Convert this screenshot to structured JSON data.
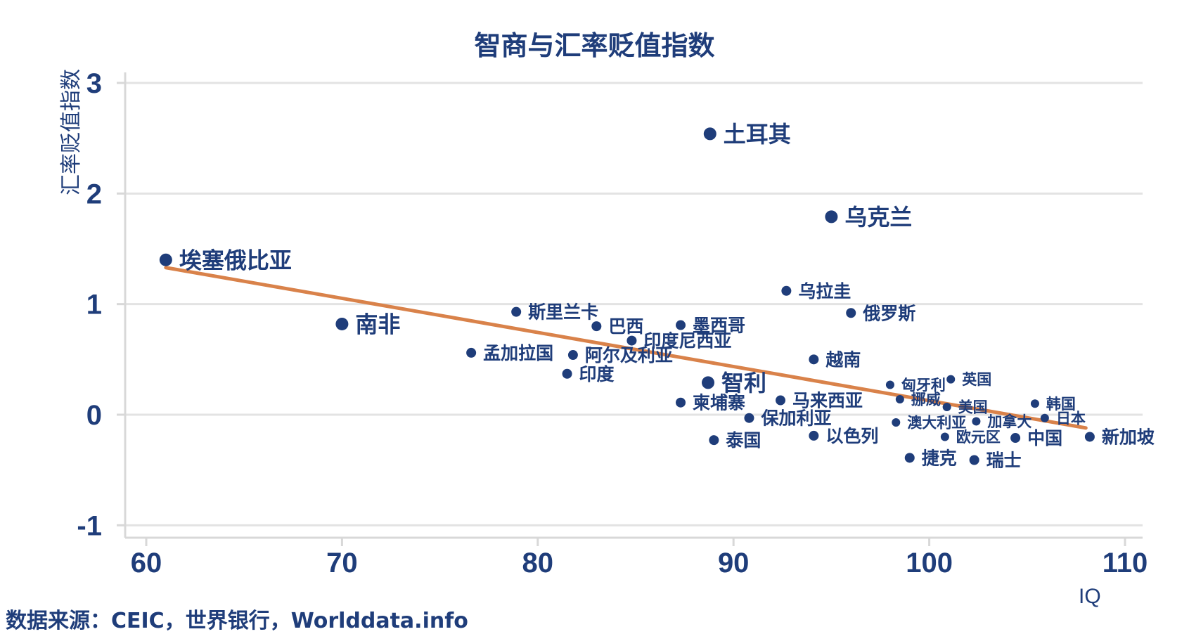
{
  "chart_data": {
    "type": "scatter",
    "title": "智商与汇率贬值指数",
    "xlabel": "IQ",
    "ylabel": "汇率贬值指数",
    "xlim": [
      59,
      111
    ],
    "ylim": [
      -1.1,
      3.05
    ],
    "xticks": [
      60,
      70,
      80,
      90,
      100,
      110
    ],
    "yticks": [
      -1,
      0,
      1,
      2,
      3
    ],
    "grid": "horizontal",
    "colors": {
      "point": "#1f3d7a",
      "trend": "#d9824a",
      "text": "#1f3d7a",
      "grid": "#e3e3e3",
      "axis": "#d8d8d8"
    },
    "points": [
      {
        "label": "埃塞俄比亚",
        "x": 61.0,
        "y": 1.4,
        "size": "large"
      },
      {
        "label": "南非",
        "x": 70.0,
        "y": 0.82,
        "size": "large"
      },
      {
        "label": "斯里兰卡",
        "x": 78.9,
        "y": 0.93,
        "size": "small"
      },
      {
        "label": "巴西",
        "x": 83.0,
        "y": 0.8,
        "size": "small"
      },
      {
        "label": "墨西哥",
        "x": 87.3,
        "y": 0.81,
        "size": "small"
      },
      {
        "label": "印度尼西亚",
        "x": 84.8,
        "y": 0.67,
        "size": "small"
      },
      {
        "label": "孟加拉国",
        "x": 76.6,
        "y": 0.56,
        "size": "small"
      },
      {
        "label": "阿尔及利亚",
        "x": 81.8,
        "y": 0.54,
        "size": "small"
      },
      {
        "label": "印度",
        "x": 81.5,
        "y": 0.37,
        "size": "small"
      },
      {
        "label": "土耳其",
        "x": 88.8,
        "y": 2.54,
        "size": "large"
      },
      {
        "label": "乌克兰",
        "x": 95.0,
        "y": 1.79,
        "size": "large"
      },
      {
        "label": "乌拉圭",
        "x": 92.7,
        "y": 1.12,
        "size": "small"
      },
      {
        "label": "俄罗斯",
        "x": 96.0,
        "y": 0.92,
        "size": "small"
      },
      {
        "label": "越南",
        "x": 94.1,
        "y": 0.5,
        "size": "small"
      },
      {
        "label": "智利",
        "x": 88.7,
        "y": 0.29,
        "size": "large"
      },
      {
        "label": "柬埔寨",
        "x": 87.3,
        "y": 0.11,
        "size": "small"
      },
      {
        "label": "马来西亚",
        "x": 92.4,
        "y": 0.13,
        "size": "small"
      },
      {
        "label": "保加利亚",
        "x": 90.8,
        "y": -0.03,
        "size": "small"
      },
      {
        "label": "泰国",
        "x": 89.0,
        "y": -0.23,
        "size": "small"
      },
      {
        "label": "以色列",
        "x": 94.1,
        "y": -0.19,
        "size": "small"
      },
      {
        "label": "匈牙利",
        "x": 98.0,
        "y": 0.27,
        "size": "tiny"
      },
      {
        "label": "英国",
        "x": 101.1,
        "y": 0.32,
        "size": "tiny"
      },
      {
        "label": "挪威",
        "x": 98.5,
        "y": 0.14,
        "size": "tiny"
      },
      {
        "label": "美国",
        "x": 100.9,
        "y": 0.07,
        "size": "tiny"
      },
      {
        "label": "澳大利亚",
        "x": 98.3,
        "y": -0.07,
        "size": "tiny"
      },
      {
        "label": "加拿大",
        "x": 102.4,
        "y": -0.06,
        "size": "tiny"
      },
      {
        "label": "欧元区",
        "x": 100.8,
        "y": -0.2,
        "size": "tiny"
      },
      {
        "label": "中国",
        "x": 104.4,
        "y": -0.21,
        "size": "small"
      },
      {
        "label": "捷克",
        "x": 99.0,
        "y": -0.39,
        "size": "small"
      },
      {
        "label": "瑞士",
        "x": 102.3,
        "y": -0.41,
        "size": "small"
      },
      {
        "label": "韩国",
        "x": 105.4,
        "y": 0.1,
        "size": "tiny"
      },
      {
        "label": "日本",
        "x": 105.9,
        "y": -0.03,
        "size": "tiny"
      },
      {
        "label": "新加坡",
        "x": 108.2,
        "y": -0.2,
        "size": "small"
      }
    ],
    "trendline": {
      "x": [
        61,
        108
      ],
      "y": [
        1.33,
        -0.12
      ]
    }
  },
  "source": "数据来源：CEIC，世界银行，Worlddata.info"
}
